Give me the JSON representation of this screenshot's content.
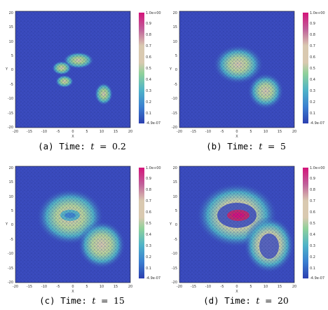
{
  "figure": {
    "panels": [
      {
        "caption_label": "(a) Time:",
        "caption_var": "t",
        "caption_eq": "=",
        "caption_value": "0.2",
        "xlabel": "X",
        "ylabel": "Y",
        "x_ticks": [
          "-20",
          "-15",
          "-10",
          "-5",
          "0",
          "5",
          "10",
          "15",
          "20"
        ],
        "y_ticks": [
          "20",
          "15",
          "10",
          "5",
          "0",
          "-5",
          "-10",
          "-15",
          "-20"
        ],
        "colorbar": {
          "max_label": "1.0e+00",
          "min_label": "-4.9e-07",
          "tick_labels": [
            "0.9",
            "0.8",
            "0.7",
            "0.6",
            "0.5",
            "0.4",
            "0.3",
            "0.2",
            "0.1"
          ]
        }
      },
      {
        "caption_label": "(b) Time:",
        "caption_var": "t",
        "caption_eq": "=",
        "caption_value": "5",
        "xlabel": "X",
        "ylabel": "Y",
        "x_ticks": [
          "-20",
          "-15",
          "-10",
          "-5",
          "0",
          "5",
          "10",
          "15",
          "20"
        ],
        "y_ticks": [
          "20",
          "15",
          "10",
          "5",
          "0",
          "-5",
          "-10",
          "-15",
          "-20"
        ],
        "colorbar": {
          "max_label": "1.0e+00",
          "min_label": "-4.9e-07",
          "tick_labels": [
            "0.9",
            "0.8",
            "0.7",
            "0.6",
            "0.5",
            "0.4",
            "0.3",
            "0.2",
            "0.1"
          ]
        }
      },
      {
        "caption_label": "(c) Time:",
        "caption_var": "t",
        "caption_eq": "=",
        "caption_value": "15",
        "xlabel": "X",
        "ylabel": "Y",
        "x_ticks": [
          "-20",
          "-15",
          "-10",
          "-5",
          "0",
          "5",
          "10",
          "15",
          "20"
        ],
        "y_ticks": [
          "20",
          "15",
          "10",
          "5",
          "0",
          "-5",
          "-10",
          "-15",
          "-20"
        ],
        "colorbar": {
          "max_label": "1.0e+00",
          "min_label": "-4.9e-07",
          "tick_labels": [
            "0.9",
            "0.8",
            "0.7",
            "0.6",
            "0.5",
            "0.4",
            "0.3",
            "0.2",
            "0.1"
          ]
        }
      },
      {
        "caption_label": "(d) Time:",
        "caption_var": "t",
        "caption_eq": "=",
        "caption_value": "20",
        "xlabel": "X",
        "ylabel": "Y",
        "x_ticks": [
          "-20",
          "-15",
          "-10",
          "-5",
          "0",
          "5",
          "10",
          "15",
          "20"
        ],
        "y_ticks": [
          "20",
          "15",
          "10",
          "5",
          "0",
          "-5",
          "-10",
          "-15",
          "-20"
        ],
        "colorbar": {
          "max_label": "1.0e+00",
          "min_label": "-4.9e-07",
          "tick_labels": [
            "0.9",
            "0.8",
            "0.7",
            "0.6",
            "0.5",
            "0.4",
            "0.3",
            "0.2",
            "0.1"
          ]
        }
      }
    ],
    "colors": {
      "background_field": "#3b4cc0",
      "mesh_line": "#1f2f80",
      "low": "#3b4cc0",
      "mid_low": "#4fb3c8",
      "mid": "#a8d48c",
      "mid_high": "#d9c9b0",
      "high": "#c42a6e",
      "top": "#d4147a"
    }
  }
}
